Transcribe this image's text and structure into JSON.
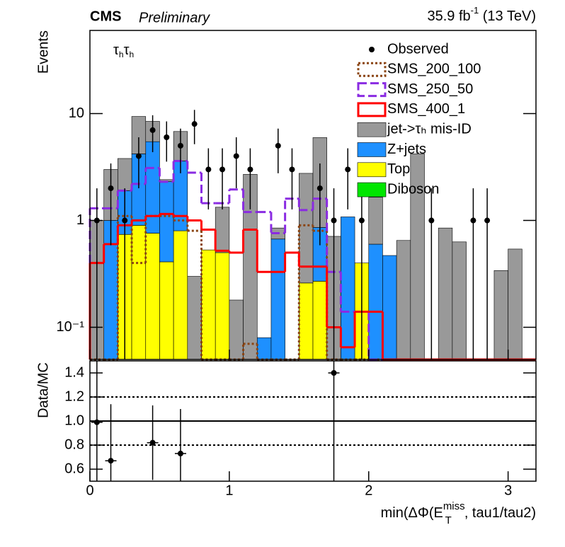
{
  "chart_data": [
    {
      "type": "histogram",
      "title": "CMS",
      "subtitle": "Preliminary",
      "lumi": [
        "35.9 fb",
        "-1",
        " (13 TeV)"
      ],
      "channel": [
        "τ",
        "h",
        "τ",
        "h"
      ],
      "y_label": "Events",
      "log_y": true,
      "legend": "top-right",
      "xlim": [
        0,
        3.2
      ],
      "ylim": [
        0.05,
        60
      ],
      "yticks": [
        {
          "value": 0.1,
          "label": "10⁻¹"
        },
        1,
        10
      ],
      "bins": [
        0,
        0.1,
        0.2,
        0.3,
        0.4,
        0.5,
        0.6,
        0.7,
        0.8,
        0.9,
        1,
        1.1,
        1.2,
        1.3,
        1.4,
        1.5,
        1.6,
        1.7,
        1.8,
        1.9,
        2,
        2.1,
        2.2,
        2.3,
        2.4,
        2.5,
        2.6,
        2.7,
        2.8,
        2.9,
        3,
        3.1,
        3.2
      ],
      "series": [
        {
          "name": "Observed",
          "color": "#000000",
          "marker": "point",
          "x": [
            0.05,
            0.15,
            0.25,
            0.35,
            0.45,
            0.55,
            0.65,
            0.75,
            0.85,
            0.95,
            1.05,
            1.15,
            1.35,
            1.45,
            1.65,
            1.75,
            1.85,
            1.95,
            2.45,
            2.75,
            2.85
          ],
          "values": [
            1,
            2,
            1,
            4,
            7,
            6,
            5,
            8,
            3,
            3,
            4,
            3,
            5,
            3,
            2,
            1,
            3,
            1,
            1,
            1,
            1
          ]
        },
        {
          "name": "SMS_200_100",
          "color": "#8b4513",
          "line": "dotted",
          "values": [
            0,
            0,
            1.1,
            0.4,
            1.1,
            1.1,
            1.0,
            0.8,
            0,
            0,
            0,
            0.07,
            0,
            0,
            0,
            0.9,
            0.8,
            0,
            0,
            0,
            0,
            0,
            0,
            0,
            0,
            0,
            0,
            0,
            0,
            0,
            0,
            0
          ]
        },
        {
          "name": "SMS_250_50",
          "color": "#8a2be2",
          "line": "dashed",
          "values": [
            1.3,
            1.3,
            1.9,
            2.2,
            3.1,
            2.3,
            3.6,
            2.8,
            1.45,
            1.45,
            1.95,
            1.2,
            1.2,
            0.76,
            1.6,
            1.25,
            1.6,
            0.33,
            0.14,
            0.14,
            0,
            0,
            0,
            0,
            0,
            0,
            0,
            0,
            0,
            0,
            0,
            0
          ]
        },
        {
          "name": "SMS_400_1",
          "color": "#ff0000",
          "line": "solid",
          "values": [
            0.4,
            0.6,
            0.9,
            1.0,
            1.1,
            1.15,
            1.1,
            1.0,
            0.82,
            0.52,
            0.5,
            0.82,
            0.33,
            0.33,
            0.5,
            0.37,
            0.37,
            0.1,
            0.065,
            0.14,
            0.14,
            0,
            0,
            0,
            0,
            0,
            0,
            0,
            0,
            0,
            0,
            0
          ]
        },
        {
          "name": "jet->τₕ mis-ID",
          "color": "#999999",
          "stacked": true,
          "values": [
            1.0,
            2.0,
            1.9,
            5.2,
            3.0,
            0.1,
            3.2,
            0.3,
            0,
            0.83,
            0.18,
            2.7,
            0,
            0.18,
            0,
            2.5,
            5.1,
            0.71,
            0,
            0,
            1.05,
            0,
            0.65,
            4.2,
            0,
            0.85,
            0.63,
            0,
            0,
            0.34,
            0.54,
            0
          ]
        },
        {
          "name": "Z+jets",
          "color": "#1e90ff",
          "stacked": true,
          "values": [
            0,
            1.0,
            1.16,
            3.3,
            4.7,
            1.9,
            2.8,
            0,
            0,
            0,
            0,
            0,
            0.08,
            0.67,
            0,
            0,
            0.59,
            0,
            1.08,
            0,
            0.6,
            0.47,
            0,
            0,
            0,
            0,
            0,
            0,
            0,
            0,
            0,
            0
          ]
        },
        {
          "name": "Top",
          "color": "#ffff00",
          "stacked": true,
          "values": [
            0,
            0,
            0.74,
            0.9,
            0.76,
            0.41,
            0.8,
            0,
            0.53,
            0.5,
            0,
            0,
            0,
            0,
            0,
            0.26,
            0.27,
            0,
            0,
            0.4,
            0,
            0,
            0,
            0,
            0,
            0,
            0,
            0,
            0,
            0,
            0,
            0
          ]
        },
        {
          "name": "Diboson",
          "color": "#00e600",
          "stacked": true,
          "values": [
            0,
            0,
            0,
            0,
            0,
            0,
            0,
            0,
            0,
            0,
            0,
            0,
            0,
            0,
            0,
            0,
            0,
            0,
            0,
            0,
            0,
            0,
            0,
            0,
            0,
            0,
            0,
            0,
            0,
            0,
            0,
            0
          ]
        }
      ]
    },
    {
      "type": "scatter",
      "y_label": "Data/MC",
      "x_label": [
        "min(ΔΦ(E",
        "miss",
        "T",
        ", tau1/tau2)"
      ],
      "xlim": [
        0,
        3.2
      ],
      "ylim": [
        0.5,
        1.5
      ],
      "xticks": [
        0,
        1,
        2,
        3
      ],
      "yticks": [
        0.6,
        0.8,
        {
          "value": 1,
          "label": "1.0"
        },
        1.2,
        1.4
      ],
      "hlines": [
        {
          "y": 0.8,
          "style": "dotted"
        },
        {
          "y": 1,
          "style": "solid"
        },
        {
          "y": 1.2,
          "style": "dotted"
        }
      ],
      "series": [
        {
          "color": "#000000",
          "x": [
            0.05,
            0.15,
            0.45,
            0.65,
            1.75
          ],
          "values": [
            0.99,
            0.67,
            0.82,
            0.73,
            1.4
          ],
          "errors": [
            0.99,
            0.47,
            0.31,
            0.37,
            1.4
          ]
        }
      ]
    }
  ]
}
